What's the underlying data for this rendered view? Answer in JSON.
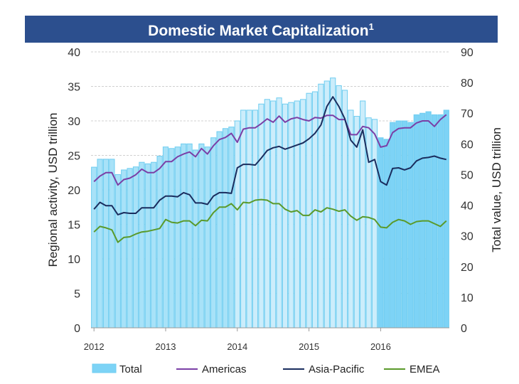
{
  "chart_data": {
    "type": "bar+line",
    "title": "Domestic Market Capitalization",
    "title_superscript": "1",
    "ylabel_left": "Regional activity, USD trillion",
    "ylabel_right": "Total value, USD trillion",
    "ylim_left": [
      0,
      40
    ],
    "ylim_right": [
      0,
      90
    ],
    "yticks_left": [
      0,
      5,
      10,
      15,
      20,
      25,
      30,
      35,
      40
    ],
    "yticks_right": [
      0,
      10,
      20,
      30,
      40,
      50,
      60,
      70,
      80,
      90
    ],
    "xtick_labels": [
      "2012",
      "2013",
      "2014",
      "2015",
      "2016"
    ],
    "x_start": "2012-01",
    "frequency": "monthly",
    "grid": true,
    "legend_position": "bottom",
    "bars": {
      "name": "Total",
      "axis": "right",
      "values": [
        52.4,
        55,
        55,
        55,
        50,
        51.5,
        52,
        52.5,
        54,
        53.5,
        54,
        56,
        59,
        58.5,
        59,
        60,
        60,
        58,
        60,
        59,
        62,
        64,
        65,
        65.5,
        67.5,
        71,
        71,
        71,
        73,
        74.5,
        74,
        75,
        73,
        73.5,
        74,
        74.5,
        76.5,
        77,
        79.5,
        80.5,
        81.5,
        79,
        77.5,
        71,
        69,
        74,
        68.5,
        68,
        62,
        61.5,
        67,
        67.5,
        67.5,
        67,
        69.5,
        70,
        70.5,
        69.5,
        69.5,
        71
      ]
    },
    "series": [
      {
        "name": "Americas",
        "axis": "left",
        "color": "#7b3fa6",
        "values": [
          21.2,
          22,
          22.5,
          22.5,
          20.7,
          21.5,
          21.7,
          22.2,
          23,
          22.5,
          22.5,
          23.1,
          24.1,
          24.1,
          24.8,
          25.2,
          25.5,
          24.8,
          26,
          25.2,
          26.4,
          27.3,
          27.6,
          28.2,
          26.9,
          28.8,
          29,
          29,
          29.6,
          30.3,
          29.8,
          30.7,
          29.8,
          30.3,
          30.5,
          30.2,
          30,
          30.5,
          30.4,
          30.8,
          30.8,
          30.2,
          30.2,
          28,
          28,
          29.2,
          29,
          28.1,
          26.2,
          26.4,
          28.3,
          28.9,
          29,
          29,
          29.7,
          30,
          30,
          29.2,
          30.2,
          30.9
        ]
      },
      {
        "name": "Asia-Pacific",
        "axis": "left",
        "color": "#1a2d5e",
        "values": [
          17.2,
          18.2,
          17.7,
          17.7,
          16.4,
          16.7,
          16.6,
          16.6,
          17.4,
          17.4,
          17.4,
          18.5,
          19.1,
          19.1,
          19,
          19.6,
          19.3,
          18.1,
          18.1,
          17.9,
          19.1,
          19.6,
          19.6,
          19.5,
          23.2,
          23.7,
          23.7,
          23.6,
          24.6,
          25.7,
          26.1,
          26.3,
          25.9,
          26.2,
          26.5,
          26.8,
          27.4,
          28.2,
          29.4,
          32.1,
          33.5,
          32.1,
          30.3,
          27.2,
          26.2,
          28.7,
          24,
          24.4,
          21.2,
          20.7,
          23.1,
          23.2,
          22.9,
          23.2,
          24.2,
          24.6,
          24.7,
          24.9,
          24.6,
          24.4
        ]
      },
      {
        "name": "EMEA",
        "axis": "left",
        "color": "#5a9a2a",
        "values": [
          13.9,
          14.7,
          14.5,
          14.2,
          12.4,
          13.1,
          13.2,
          13.6,
          13.9,
          14,
          14.2,
          14.4,
          15.7,
          15.3,
          15.2,
          15.5,
          15.5,
          14.8,
          15.6,
          15.5,
          16.7,
          17.5,
          17.5,
          18,
          17.1,
          18.2,
          18.1,
          18.5,
          18.6,
          18.5,
          18,
          18,
          17.2,
          16.8,
          17,
          16.3,
          16.3,
          17.1,
          16.8,
          17.4,
          17.2,
          16.9,
          17.1,
          16.2,
          15.6,
          16.1,
          16,
          15.7,
          14.6,
          14.5,
          15.3,
          15.7,
          15.5,
          15,
          15.4,
          15.5,
          15.5,
          15.1,
          14.7,
          15.5
        ]
      }
    ],
    "colors": {
      "banner": "#2c4f8e",
      "bar_2012_2013": "#a8e2f8",
      "bar_2014_2015": "#ccedfb",
      "bar_2016": "#7dd3f6",
      "bar_edge": "#6fcdf0"
    }
  }
}
